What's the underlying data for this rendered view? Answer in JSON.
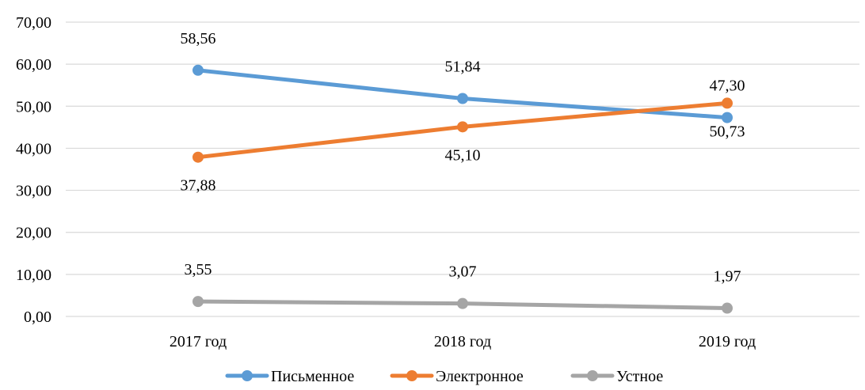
{
  "chart_data": {
    "type": "line",
    "title": "",
    "xlabel": "",
    "ylabel": "",
    "categories": [
      "2017 год",
      "2018 год",
      "2019 год"
    ],
    "ylim": [
      0,
      70
    ],
    "yticks": [
      "0,00",
      "10,00",
      "20,00",
      "30,00",
      "40,00",
      "50,00",
      "60,00",
      "70,00"
    ],
    "grid": true,
    "legend_position": "bottom",
    "series": [
      {
        "name": "Письменное",
        "color": "#5b9bd5",
        "values": [
          58.56,
          51.84,
          47.3
        ],
        "labels": [
          "58,56",
          "51,84",
          "47,30"
        ]
      },
      {
        "name": "Электронное",
        "color": "#ed7d31",
        "values": [
          37.88,
          45.1,
          50.73
        ],
        "labels": [
          "37,88",
          "45,10",
          "50,73"
        ]
      },
      {
        "name": "Устное",
        "color": "#a5a5a5",
        "values": [
          3.55,
          3.07,
          1.97
        ],
        "labels": [
          "3,55",
          "3,07",
          "1,97"
        ]
      }
    ]
  }
}
